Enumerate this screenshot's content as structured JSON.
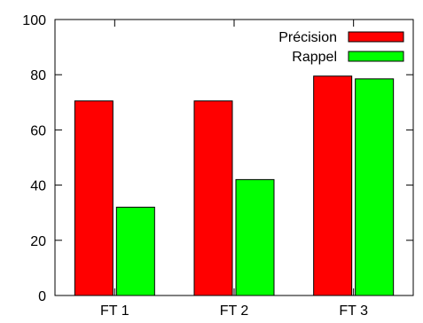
{
  "chart_data": {
    "type": "bar",
    "categories": [
      "FT 1",
      "FT 2",
      "FT 3"
    ],
    "series": [
      {
        "name": "Précision",
        "values": [
          70.5,
          70.5,
          79.5
        ],
        "color": "#ff0000"
      },
      {
        "name": "Rappel",
        "values": [
          32,
          42,
          78.5
        ],
        "color": "#00ff00"
      }
    ],
    "yticks": [
      0,
      20,
      40,
      60,
      80,
      100
    ],
    "ylim": [
      0,
      100
    ],
    "legend_position": "top-right",
    "grid": false
  }
}
